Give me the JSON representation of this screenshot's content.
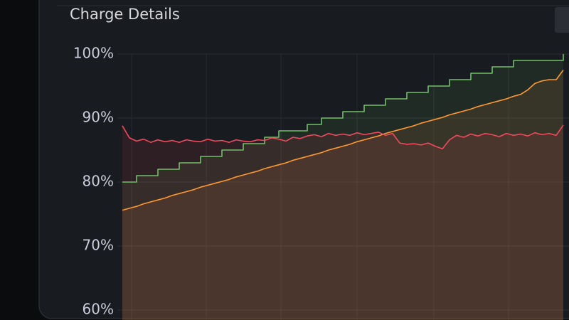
{
  "chart_data": {
    "type": "line",
    "title": "Charge Details",
    "ylim": [
      58.5,
      100
    ],
    "yticks": [
      {
        "value": 60,
        "label": "60%"
      },
      {
        "value": 70,
        "label": "70%"
      },
      {
        "value": 80,
        "label": "80%"
      },
      {
        "value": 90,
        "label": "90%"
      },
      {
        "value": 100,
        "label": "100%"
      }
    ],
    "grid": true,
    "series": [
      {
        "color": "#73bf69",
        "step": true,
        "values": [
          80,
          80,
          81,
          81,
          81,
          82,
          82,
          82,
          83,
          83,
          83,
          84,
          84,
          84,
          85,
          85,
          85,
          86,
          86,
          86,
          87,
          87,
          88,
          88,
          88,
          88,
          89,
          89,
          90,
          90,
          90,
          91,
          91,
          91,
          92,
          92,
          92,
          93,
          93,
          93,
          94,
          94,
          94,
          95,
          95,
          95,
          96,
          96,
          96,
          97,
          97,
          97,
          98,
          98,
          98,
          99,
          99,
          99,
          99,
          99,
          99,
          99,
          100
        ]
      },
      {
        "color": "#ff9830",
        "step": false,
        "values": [
          75.6,
          75.9,
          76.2,
          76.6,
          76.9,
          77.2,
          77.5,
          77.9,
          78.2,
          78.5,
          78.8,
          79.2,
          79.5,
          79.8,
          80.1,
          80.4,
          80.8,
          81.1,
          81.4,
          81.7,
          82.1,
          82.4,
          82.7,
          83.0,
          83.4,
          83.7,
          84.0,
          84.3,
          84.6,
          85.0,
          85.3,
          85.6,
          85.9,
          86.3,
          86.6,
          86.9,
          87.2,
          87.6,
          87.9,
          88.2,
          88.5,
          88.8,
          89.2,
          89.5,
          89.8,
          90.1,
          90.5,
          90.8,
          91.1,
          91.4,
          91.8,
          92.1,
          92.4,
          92.7,
          93.0,
          93.4,
          93.7,
          94.4,
          95.4,
          95.8,
          96.0,
          96.0,
          97.5
        ]
      },
      {
        "color": "#f2495c",
        "step": false,
        "values": [
          88.8,
          86.9,
          86.4,
          86.7,
          86.2,
          86.6,
          86.3,
          86.5,
          86.2,
          86.6,
          86.4,
          86.3,
          86.7,
          86.4,
          86.5,
          86.2,
          86.6,
          86.4,
          86.3,
          86.6,
          86.5,
          86.9,
          86.7,
          86.4,
          87.0,
          86.8,
          87.2,
          87.4,
          87.1,
          87.6,
          87.3,
          87.5,
          87.3,
          87.7,
          87.4,
          87.6,
          87.8,
          87.3,
          87.6,
          86.1,
          85.9,
          86.0,
          85.8,
          86.1,
          85.6,
          85.2,
          86.6,
          87.3,
          87.0,
          87.5,
          87.2,
          87.6,
          87.4,
          87.1,
          87.6,
          87.3,
          87.5,
          87.2,
          87.7,
          87.4,
          87.6,
          87.3,
          88.9
        ]
      }
    ]
  }
}
